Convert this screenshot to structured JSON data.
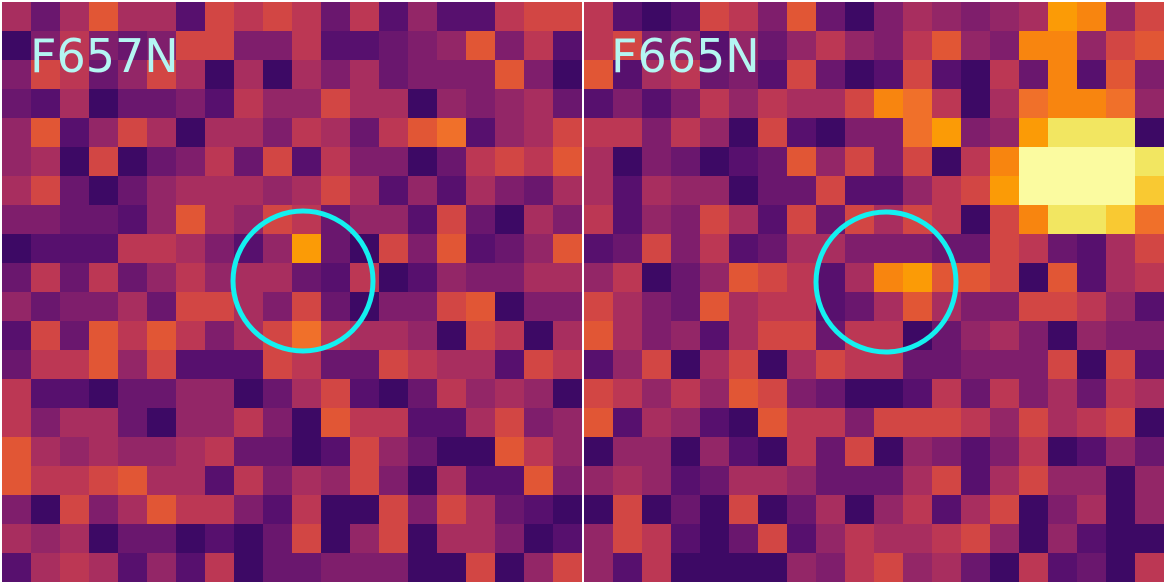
{
  "panels": [
    {
      "label": "F657N"
    },
    {
      "label": "F665N"
    }
  ]
}
